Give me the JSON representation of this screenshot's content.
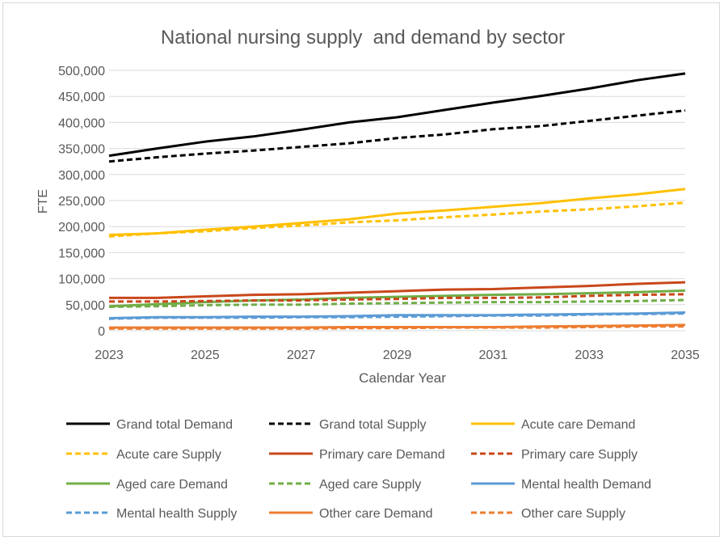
{
  "chart_data": {
    "type": "line",
    "title": "National nursing supply  and demand by sector",
    "xlabel": "Calendar Year",
    "ylabel": "FTE",
    "ylim": [
      0,
      500000
    ],
    "yticks": [
      "0",
      "50,000",
      "100,000",
      "150,000",
      "200,000",
      "250,000",
      "300,000",
      "350,000",
      "400,000",
      "450,000",
      "500,000"
    ],
    "ytick_values": [
      0,
      50000,
      100000,
      150000,
      200000,
      250000,
      300000,
      350000,
      400000,
      450000,
      500000
    ],
    "xticks": [
      "2023",
      "2025",
      "2027",
      "2029",
      "2031",
      "2033",
      "2035"
    ],
    "x": [
      2023,
      2024,
      2025,
      2026,
      2027,
      2028,
      2029,
      2030,
      2031,
      2032,
      2033,
      2034,
      2035
    ],
    "grid": "horizontal",
    "legend_position": "bottom",
    "series": [
      {
        "name": "Grand total Demand",
        "color": "#000000",
        "dash": false,
        "values": [
          336000,
          350000,
          363000,
          373000,
          386000,
          400000,
          410000,
          424000,
          438000,
          451000,
          465000,
          481000,
          494000
        ]
      },
      {
        "name": "Grand total Supply",
        "color": "#000000",
        "dash": true,
        "values": [
          325000,
          333000,
          340000,
          346000,
          353000,
          360000,
          370000,
          377000,
          387000,
          393000,
          403000,
          413000,
          423000
        ]
      },
      {
        "name": "Acute care Demand",
        "color": "#FFC000",
        "dash": false,
        "values": [
          184000,
          187000,
          194000,
          200000,
          207000,
          214000,
          225000,
          231000,
          238000,
          245000,
          254000,
          262000,
          272000
        ]
      },
      {
        "name": "Acute care Supply",
        "color": "#FFC000",
        "dash": true,
        "values": [
          181000,
          187000,
          191000,
          197000,
          202000,
          208000,
          212000,
          218000,
          223000,
          229000,
          233000,
          239000,
          246000
        ]
      },
      {
        "name": "Primary care Demand",
        "color": "#C9471A",
        "dash": false,
        "values": [
          63000,
          63000,
          66000,
          69000,
          70000,
          73000,
          76000,
          79000,
          80000,
          83000,
          86000,
          90000,
          93000
        ]
      },
      {
        "name": "Primary care Supply",
        "color": "#C9471A",
        "dash": true,
        "values": [
          56000,
          56000,
          57000,
          58000,
          58000,
          60000,
          61000,
          63000,
          63000,
          64000,
          67000,
          69000,
          70000
        ]
      },
      {
        "name": "Aged care Demand",
        "color": "#70AD47",
        "dash": false,
        "values": [
          47000,
          51000,
          55000,
          58000,
          60000,
          63000,
          65000,
          67000,
          69000,
          70000,
          72000,
          74000,
          77000
        ]
      },
      {
        "name": "Aged care Supply",
        "color": "#70AD47",
        "dash": true,
        "values": [
          46000,
          47000,
          49000,
          50000,
          50000,
          52000,
          53000,
          54000,
          55000,
          55000,
          56000,
          57000,
          59000
        ]
      },
      {
        "name": "Mental health Demand",
        "color": "#5B9BD5",
        "dash": false,
        "values": [
          24000,
          26000,
          26000,
          27000,
          27000,
          28000,
          30000,
          30000,
          30000,
          31000,
          32000,
          33000,
          35000
        ]
      },
      {
        "name": "Mental health Supply",
        "color": "#5B9BD5",
        "dash": true,
        "values": [
          23000,
          25000,
          25000,
          25000,
          26000,
          26000,
          27000,
          28000,
          29000,
          29000,
          31000,
          32000,
          33000
        ]
      },
      {
        "name": "Other care Demand",
        "color": "#ED7D31",
        "dash": false,
        "values": [
          6000,
          6000,
          6000,
          6000,
          6000,
          7000,
          7000,
          7000,
          7000,
          8000,
          9000,
          10000,
          11000
        ]
      },
      {
        "name": "Other care Supply",
        "color": "#ED7D31",
        "dash": true,
        "values": [
          4000,
          4000,
          4000,
          4000,
          4000,
          5000,
          5000,
          6000,
          6000,
          6000,
          7000,
          8000,
          8000
        ]
      }
    ]
  }
}
